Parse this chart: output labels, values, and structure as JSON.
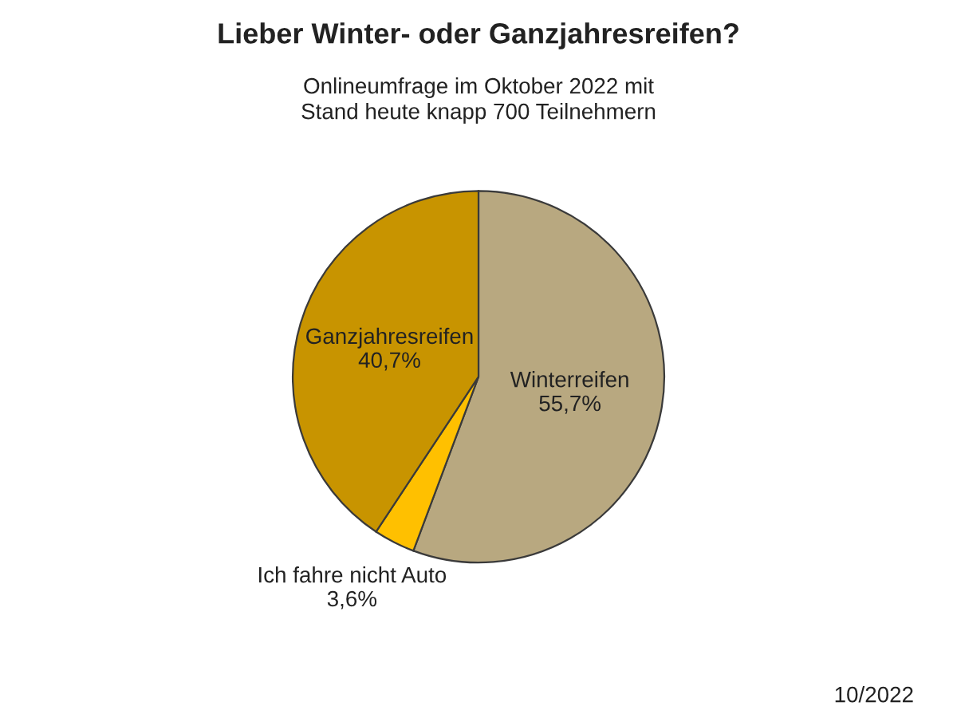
{
  "chart_data": {
    "type": "pie",
    "title": "Lieber Winter- oder Ganzjahresreifen?",
    "subtitle": "Onlineumfrage im Oktober 2022 mit\nStand heute knapp 700 Teilnehmern",
    "categories": [
      "Winterreifen",
      "Ich fahre nicht Auto",
      "Ganzjahresreifen"
    ],
    "values": [
      55.7,
      3.6,
      40.7
    ],
    "value_labels": [
      "55,7%",
      "3,6%",
      "40,7%"
    ],
    "colors": [
      "#b8a880",
      "#ffc000",
      "#c89400"
    ],
    "annotations": [
      "10/2022"
    ]
  }
}
